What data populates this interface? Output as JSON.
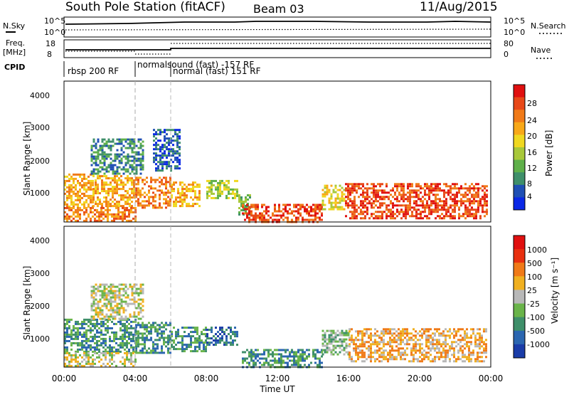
{
  "header": {
    "title": "South Pole Station (fitACF)",
    "beam": "Beam 03",
    "date": "11/Aug/2015"
  },
  "noise_panel": {
    "left_label": "N.Sky",
    "right_label": "N.Search",
    "left_ticks": [
      "10^5",
      "10^0"
    ],
    "right_ticks": [
      "10^5",
      "10^0"
    ]
  },
  "freq_panel": {
    "left_label_line1": "Freq.",
    "left_label_line2": "[MHz]",
    "right_label": "Nave",
    "left_ticks": [
      "18",
      "8"
    ],
    "right_ticks": [
      "80",
      "0"
    ]
  },
  "cpid_panel": {
    "label": "CPID",
    "segments": [
      {
        "name": "rbsp 200 RF",
        "start_hour": 0.0,
        "end_hour": 4.0
      },
      {
        "name": "normalsound (fast) -157 RF",
        "start_hour": 4.0,
        "end_hour": 6.0
      },
      {
        "name": "normal (fast) 151 RF",
        "start_hour": 6.0,
        "end_hour": 24.0
      }
    ]
  },
  "x_axis": {
    "label": "Time UT",
    "ticks": [
      "00:00",
      "04:00",
      "08:00",
      "12:00",
      "16:00",
      "20:00",
      "00:00"
    ]
  },
  "power_panel": {
    "ylabel": "Slant Range [km]",
    "yticks": [
      "4000",
      "3000",
      "2000",
      "1000"
    ],
    "colorbar_label": "Power [dB]",
    "colorbar_ticks": [
      "28",
      "24",
      "20",
      "16",
      "12",
      "8",
      "4"
    ],
    "colors": [
      "#0a28e6",
      "#1f4fb4",
      "#3f8f6a",
      "#5fb04a",
      "#a8c83a",
      "#f0d820",
      "#f8a818",
      "#f07a18",
      "#e84818",
      "#e01010"
    ]
  },
  "velocity_panel": {
    "ylabel": "Slant Range [km]",
    "yticks": [
      "4000",
      "3000",
      "2000",
      "1000"
    ],
    "colorbar_label": "Velocity [m s⁻¹]",
    "colorbar_ticks": [
      "1000",
      "500",
      "100",
      "25",
      "-25",
      "-100",
      "-500",
      "-1000"
    ],
    "colors": [
      "#1a3ca8",
      "#2b66b0",
      "#3f8f6a",
      "#6ab44a",
      "#b8b8b8",
      "#f0b020",
      "#f07a18",
      "#e83010",
      "#e01010"
    ]
  },
  "chart_data": {
    "type": "heatmap",
    "title": "South Pole Station (fitACF)",
    "xlabel": "Time UT",
    "ylabel": "Slant Range [km]",
    "xlim": [
      0,
      24
    ],
    "ylim": [
      180,
      4600
    ],
    "power_regions": [
      {
        "start": 0.0,
        "end": 1.6,
        "rmin": 650,
        "rmax": 1700,
        "level": 6
      },
      {
        "start": 1.6,
        "end": 4.0,
        "rmin": 700,
        "rmax": 1650,
        "level": 6
      },
      {
        "start": 4.0,
        "end": 6.0,
        "rmin": 600,
        "rmax": 1600,
        "level": 7
      },
      {
        "start": 6.0,
        "end": 7.6,
        "rmin": 650,
        "rmax": 1450,
        "level": 6
      },
      {
        "start": 8.0,
        "end": 9.8,
        "rmin": 900,
        "rmax": 1500,
        "level": 4
      },
      {
        "start": 9.8,
        "end": 10.5,
        "rmin": 400,
        "rmax": 1050,
        "level": 3
      },
      {
        "start": 10.0,
        "end": 14.5,
        "rmin": 200,
        "rmax": 750,
        "level": 8
      },
      {
        "start": 14.5,
        "end": 15.8,
        "rmin": 600,
        "rmax": 1350,
        "level": 5
      },
      {
        "start": 15.8,
        "end": 23.8,
        "rmin": 300,
        "rmax": 1400,
        "level": 8
      },
      {
        "start": 0.0,
        "end": 4.0,
        "rmin": 200,
        "rmax": 650,
        "level": 7
      },
      {
        "start": 1.5,
        "end": 4.5,
        "rmin": 1700,
        "rmax": 2800,
        "level": 2
      },
      {
        "start": 5.0,
        "end": 6.5,
        "rmin": 1800,
        "rmax": 3100,
        "level": 1
      }
    ],
    "velocity_regions": [
      {
        "start": 0.0,
        "end": 4.0,
        "rmin": 650,
        "rmax": 1700,
        "level": 2
      },
      {
        "start": 4.0,
        "end": 6.0,
        "rmin": 650,
        "rmax": 1600,
        "level": 2
      },
      {
        "start": 6.0,
        "end": 8.0,
        "rmin": 700,
        "rmax": 1450,
        "level": 2
      },
      {
        "start": 8.0,
        "end": 9.8,
        "rmin": 900,
        "rmax": 1450,
        "level": 1
      },
      {
        "start": 10.0,
        "end": 14.5,
        "rmin": 200,
        "rmax": 750,
        "level": 2
      },
      {
        "start": 14.5,
        "end": 16.0,
        "rmin": 600,
        "rmax": 1350,
        "level": 3
      },
      {
        "start": 16.0,
        "end": 23.8,
        "rmin": 350,
        "rmax": 1400,
        "level": 5
      },
      {
        "start": 0.0,
        "end": 4.0,
        "rmin": 200,
        "rmax": 650,
        "level": 4
      },
      {
        "start": 1.5,
        "end": 4.5,
        "rmin": 1700,
        "rmax": 2800,
        "level": 4
      }
    ]
  }
}
